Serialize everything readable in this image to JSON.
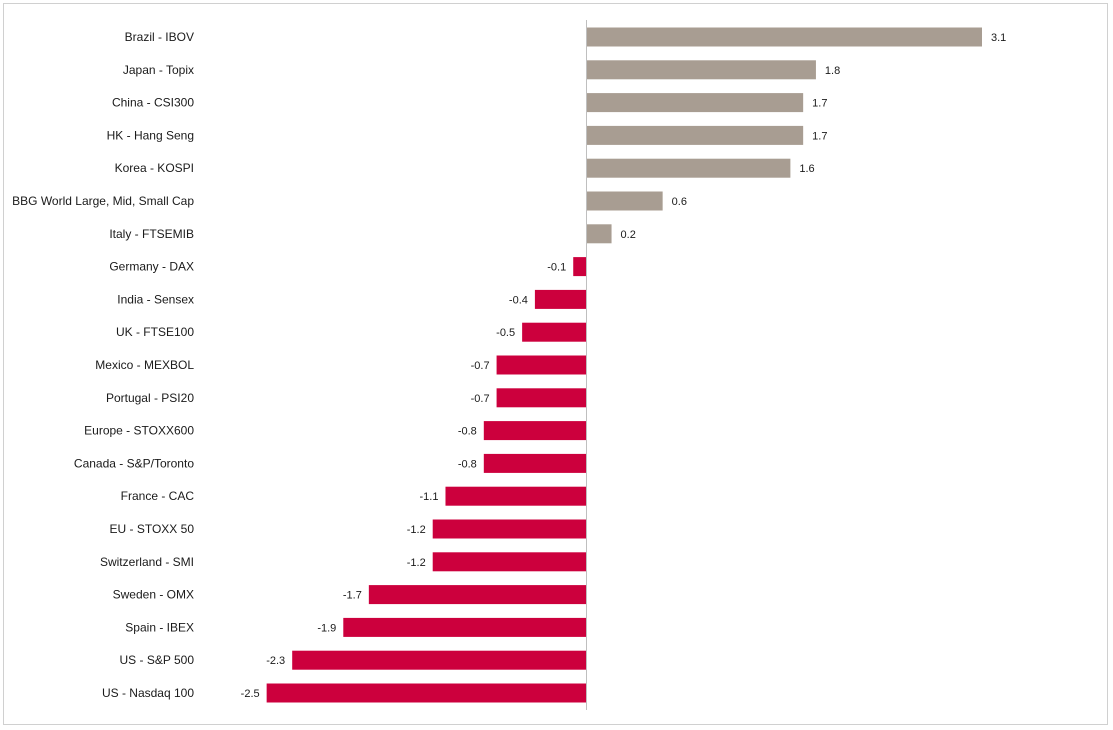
{
  "chart_data": {
    "type": "bar",
    "orientation": "horizontal",
    "title": "",
    "xlabel": "",
    "ylabel": "",
    "categories": [
      "Brazil - IBOV",
      "Japan - Topix",
      "China - CSI300",
      "HK - Hang Seng",
      "Korea - KOSPI",
      "BBG World Large, Mid, Small Cap",
      "Italy - FTSEMIB",
      "Germany - DAX",
      "India - Sensex",
      "UK - FTSE100",
      "Mexico - MEXBOL",
      "Portugal - PSI20",
      "Europe - STOXX600",
      "Canada - S&P/Toronto",
      "France - CAC",
      "EU - STOXX 50",
      "Switzerland - SMI",
      "Sweden - OMX",
      "Spain - IBEX",
      "US - S&P 500",
      "US - Nasdaq 100"
    ],
    "values": [
      3.1,
      1.8,
      1.7,
      1.7,
      1.6,
      0.6,
      0.2,
      -0.1,
      -0.4,
      -0.5,
      -0.7,
      -0.7,
      -0.8,
      -0.8,
      -1.1,
      -1.2,
      -1.2,
      -1.7,
      -1.9,
      -2.3,
      -2.5
    ],
    "value_labels": [
      "3.1",
      "1.8",
      "1.7",
      "1.7",
      "1.6",
      "0.6",
      "0.2",
      "-0.1",
      "-0.4",
      "-0.5",
      "-0.7",
      "-0.7",
      "-0.8",
      "-0.8",
      "-1.1",
      "-1.2",
      "-1.2",
      "-1.7",
      "-1.9",
      "-2.3",
      "-2.5"
    ],
    "xlim": [
      -2.5,
      3.1
    ],
    "grid": false,
    "legend": "none",
    "colors": {
      "positive": "#a89d92",
      "negative": "#cc003d"
    }
  }
}
